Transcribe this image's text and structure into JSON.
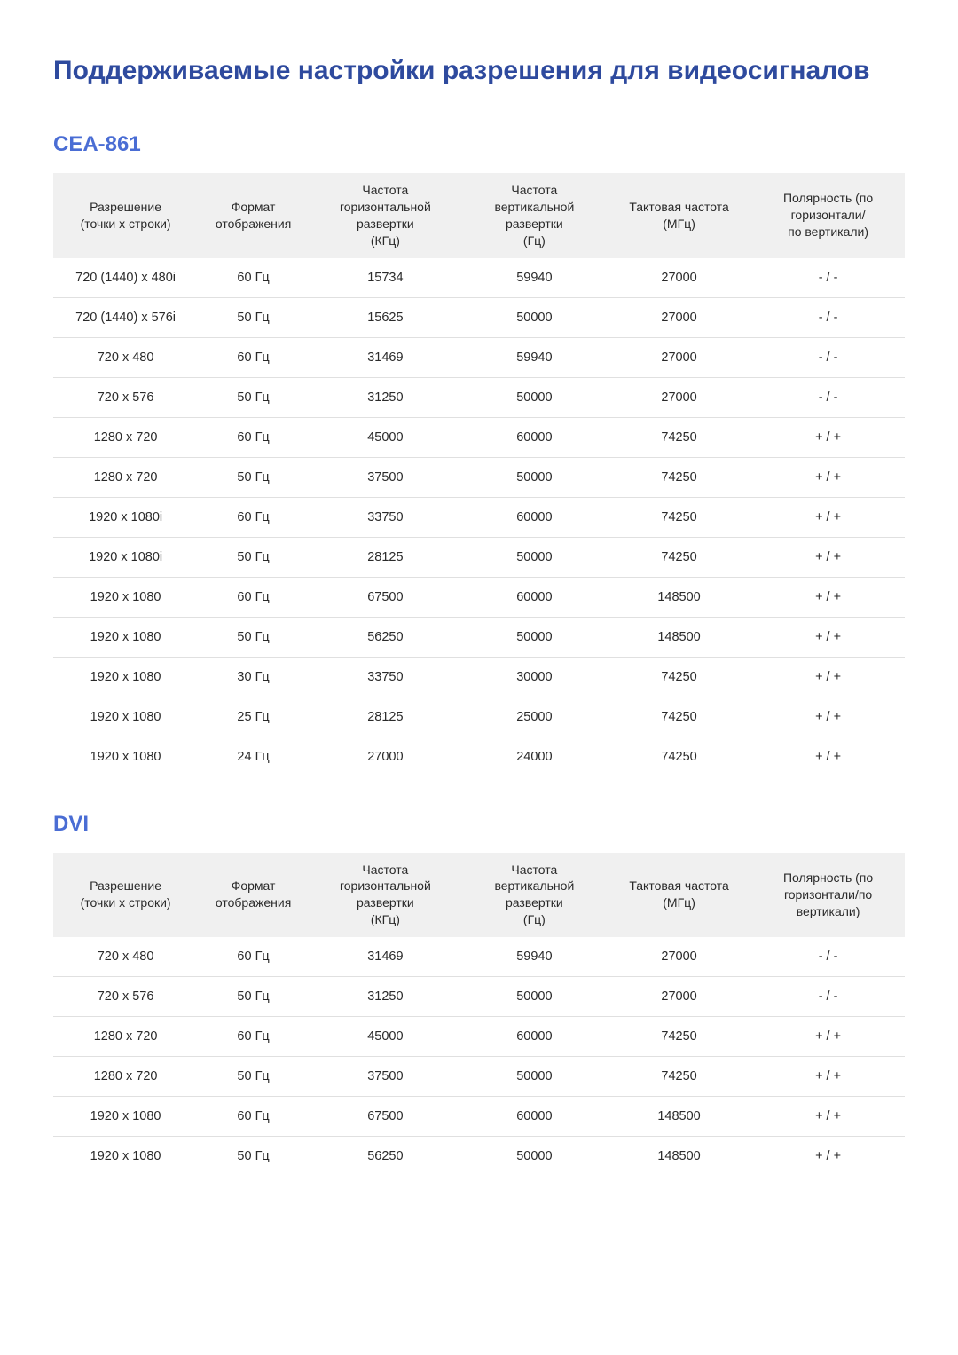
{
  "page_title": "Поддерживаемые настройки разрешения для видеосигналов",
  "sections": [
    {
      "title": "CEA-861",
      "columns": [
        "Разрешение\n(точки х строки)",
        "Формат\nотображения",
        "Частота\nгоризонтальной\nразвертки\n(КГц)",
        "Частота\nвертикальной\nразвертки\n(Гц)",
        "Тактовая частота\n(МГц)",
        "Полярность (по\nгоризонтали/\nпо вертикали)"
      ],
      "rows": [
        [
          "720 (1440) x 480i",
          "60 Гц",
          "15734",
          "59940",
          "27000",
          "- / -"
        ],
        [
          "720 (1440) x 576i",
          "50 Гц",
          "15625",
          "50000",
          "27000",
          "- / -"
        ],
        [
          "720 x 480",
          "60 Гц",
          "31469",
          "59940",
          "27000",
          "- / -"
        ],
        [
          "720 x 576",
          "50 Гц",
          "31250",
          "50000",
          "27000",
          "- / -"
        ],
        [
          "1280 x 720",
          "60 Гц",
          "45000",
          "60000",
          "74250",
          "+ / +"
        ],
        [
          "1280 x 720",
          "50 Гц",
          "37500",
          "50000",
          "74250",
          "+ / +"
        ],
        [
          "1920 x 1080i",
          "60 Гц",
          "33750",
          "60000",
          "74250",
          "+ / +"
        ],
        [
          "1920 x 1080i",
          "50 Гц",
          "28125",
          "50000",
          "74250",
          "+ / +"
        ],
        [
          "1920 x 1080",
          "60 Гц",
          "67500",
          "60000",
          "148500",
          "+ / +"
        ],
        [
          "1920 x 1080",
          "50 Гц",
          "56250",
          "50000",
          "148500",
          "+ / +"
        ],
        [
          "1920 x 1080",
          "30 Гц",
          "33750",
          "30000",
          "74250",
          "+ / +"
        ],
        [
          "1920 x 1080",
          "25 Гц",
          "28125",
          "25000",
          "74250",
          "+ / +"
        ],
        [
          "1920 x 1080",
          "24 Гц",
          "27000",
          "24000",
          "74250",
          "+ / +"
        ]
      ]
    },
    {
      "title": "DVI",
      "columns": [
        "Разрешение\n(точки х строки)",
        "Формат\nотображения",
        "Частота\nгоризонтальной\nразвертки\n(КГц)",
        "Частота\nвертикальной\nразвертки\n(Гц)",
        "Тактовая частота\n(МГц)",
        "Полярность (по\nгоризонтали/по\nвертикали)"
      ],
      "rows": [
        [
          "720 x 480",
          "60 Гц",
          "31469",
          "59940",
          "27000",
          "- / -"
        ],
        [
          "720 x 576",
          "50 Гц",
          "31250",
          "50000",
          "27000",
          "- / -"
        ],
        [
          "1280 x 720",
          "60 Гц",
          "45000",
          "60000",
          "74250",
          "+ / +"
        ],
        [
          "1280 x 720",
          "50 Гц",
          "37500",
          "50000",
          "74250",
          "+ / +"
        ],
        [
          "1920 x 1080",
          "60 Гц",
          "67500",
          "60000",
          "148500",
          "+ / +"
        ],
        [
          "1920 x 1080",
          "50 Гц",
          "56250",
          "50000",
          "148500",
          "+ / +"
        ]
      ]
    }
  ],
  "styling": {
    "page_bg": "#ffffff",
    "title_color": "#2e4a9e",
    "section_title_color": "#4a6dd4",
    "header_bg": "#f0f0f0",
    "text_color": "#2a2a2a",
    "border_color": "#e0e0e0",
    "title_fontsize": 30,
    "section_title_fontsize": 24,
    "th_fontsize": 14,
    "td_fontsize": 14.5
  }
}
